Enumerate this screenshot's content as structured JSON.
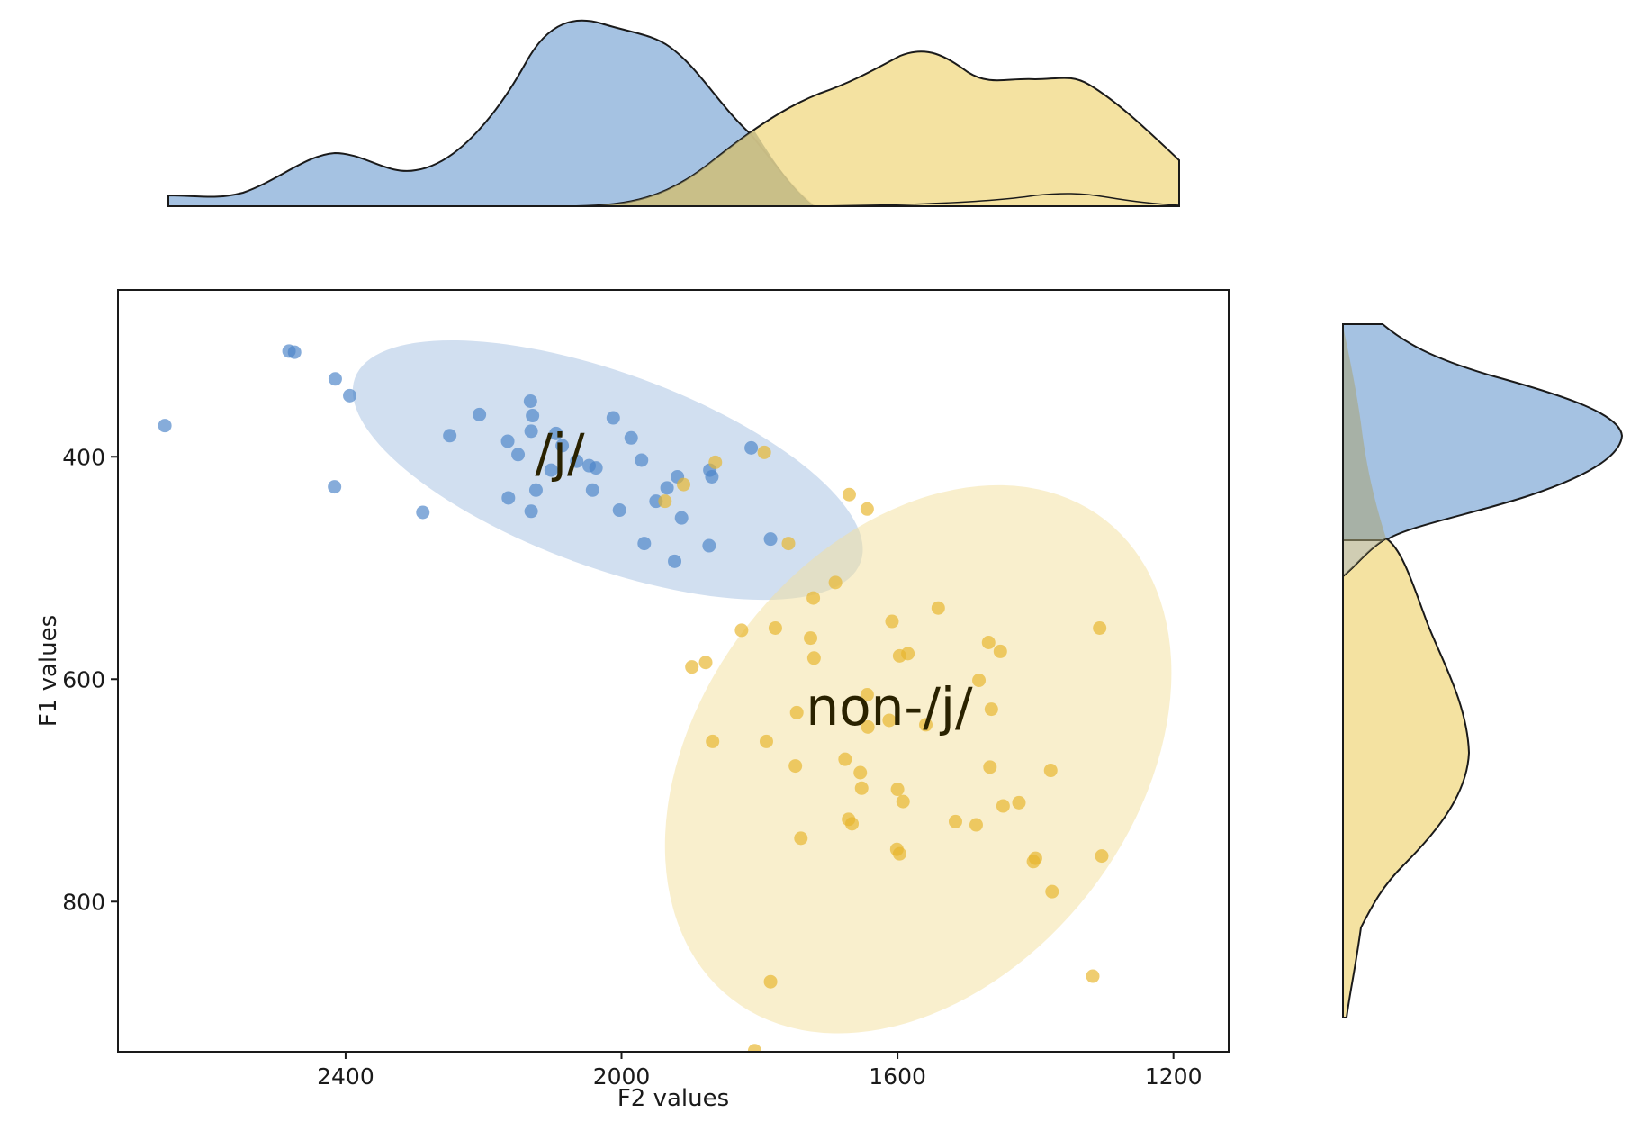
{
  "chart_data": {
    "type": "scatter",
    "title": "",
    "xlabel": "F2 values",
    "ylabel": "F1 values",
    "x_axis_reversed": true,
    "y_axis_reversed": true,
    "xlim": [
      2730,
      1120
    ],
    "ylim": [
      250,
      935
    ],
    "xticks": [
      2400,
      2000,
      1600,
      1200
    ],
    "yticks": [
      400,
      600,
      800
    ],
    "xtick_labels": [
      "2400",
      "2000",
      "1600",
      "1200"
    ],
    "ytick_labels": [
      "400",
      "600",
      "800"
    ],
    "grid": false,
    "marginals": "kde (top: F2, right: F1)",
    "colors": {
      "j": "#4c84c8",
      "nonj": "#e8b62c",
      "j_fill": "#9ebde0",
      "nonj_fill": "#f3e09c"
    },
    "series": [
      {
        "name": "/j/",
        "label": "/j/",
        "color": "#4c84c8",
        "ellipse": {
          "cx": 2020,
          "cy": 412,
          "width_f2": 780,
          "height_f1": 175,
          "angle_deg": 20
        },
        "points": [
          [
            2662,
            372
          ],
          [
            2482,
            305
          ],
          [
            2474,
            306
          ],
          [
            2415,
            330
          ],
          [
            2394,
            345
          ],
          [
            2416,
            427
          ],
          [
            2249,
            381
          ],
          [
            2206,
            362
          ],
          [
            2288,
            450
          ],
          [
            2165,
            386
          ],
          [
            2150,
            398
          ],
          [
            2132,
            350
          ],
          [
            2129,
            363
          ],
          [
            2131,
            377
          ],
          [
            2095,
            379
          ],
          [
            2086,
            390
          ],
          [
            2065,
            404
          ],
          [
            2047,
            408
          ],
          [
            2037,
            410
          ],
          [
            2042,
            430
          ],
          [
            2012,
            365
          ],
          [
            1986,
            383
          ],
          [
            2102,
            412
          ],
          [
            2124,
            430
          ],
          [
            2164,
            437
          ],
          [
            2131,
            449
          ],
          [
            2003,
            448
          ],
          [
            1971,
            403
          ],
          [
            1934,
            428
          ],
          [
            1919,
            418
          ],
          [
            1869,
            418
          ],
          [
            1872,
            412
          ],
          [
            1812,
            392
          ],
          [
            1950,
            440
          ],
          [
            1967,
            478
          ],
          [
            1923,
            494
          ],
          [
            1913,
            455
          ],
          [
            1873,
            480
          ],
          [
            1784,
            474
          ]
        ]
      },
      {
        "name": "non-/j/",
        "label": "non-/j/",
        "color": "#e8b62c",
        "ellipse": {
          "cx": 1570,
          "cy": 672,
          "width_f2": 880,
          "height_f1": 390,
          "angle_deg": -52
        },
        "points": [
          [
            1793,
            396
          ],
          [
            1864,
            405
          ],
          [
            1937,
            440
          ],
          [
            1910,
            425
          ],
          [
            1758,
            478
          ],
          [
            1670,
            434
          ],
          [
            1644,
            447
          ],
          [
            1690,
            513
          ],
          [
            1722,
            527
          ],
          [
            1826,
            556
          ],
          [
            1777,
            554
          ],
          [
            1726,
            563
          ],
          [
            1721,
            581
          ],
          [
            1878,
            585
          ],
          [
            1898,
            589
          ],
          [
            1608,
            548
          ],
          [
            1541,
            536
          ],
          [
            1597,
            579
          ],
          [
            1585,
            577
          ],
          [
            1468,
            567
          ],
          [
            1451,
            575
          ],
          [
            1307,
            554
          ],
          [
            1482,
            601
          ],
          [
            1644,
            614
          ],
          [
            1746,
            630
          ],
          [
            1643,
            643
          ],
          [
            1612,
            637
          ],
          [
            1559,
            641
          ],
          [
            1464,
            627
          ],
          [
            1868,
            656
          ],
          [
            1790,
            656
          ],
          [
            1748,
            678
          ],
          [
            1676,
            672
          ],
          [
            1654,
            684
          ],
          [
            1600,
            699
          ],
          [
            1652,
            698
          ],
          [
            1592,
            710
          ],
          [
            1466,
            679
          ],
          [
            1378,
            682
          ],
          [
            1424,
            711
          ],
          [
            1447,
            714
          ],
          [
            1516,
            728
          ],
          [
            1486,
            731
          ],
          [
            1740,
            743
          ],
          [
            1671,
            726
          ],
          [
            1666,
            730
          ],
          [
            1601,
            753
          ],
          [
            1597,
            757
          ],
          [
            1400,
            761
          ],
          [
            1403,
            764
          ],
          [
            1304,
            759
          ],
          [
            1376,
            791
          ],
          [
            1317,
            867
          ],
          [
            1784,
            872
          ],
          [
            1807,
            934
          ]
        ]
      }
    ]
  },
  "labels": {
    "group_j": "/j/",
    "group_nonj": "non-/j/"
  }
}
